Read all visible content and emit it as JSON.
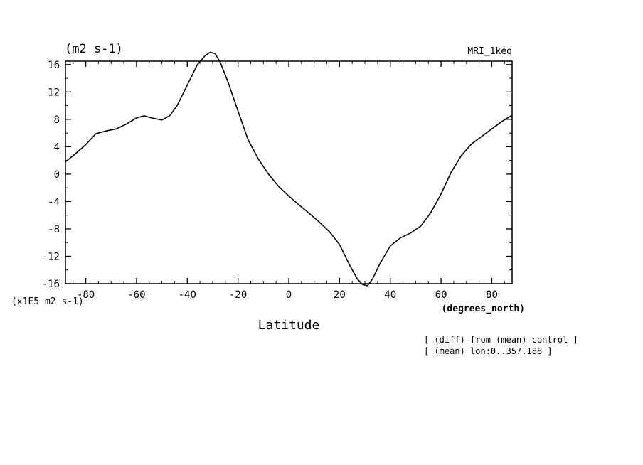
{
  "chart_data": {
    "type": "line",
    "title_units": "(m2 s-1)",
    "model_label": "MRI_1keq",
    "xlabel": "Latitude",
    "x_units": "(degrees_north)",
    "y_scale_label": "(x1E5 m2 s-1)",
    "annotations": [
      "[ (diff) from (mean) control ]",
      "[ (mean) lon:0..357.188 ]"
    ],
    "xlim": [
      -88,
      88
    ],
    "ylim": [
      -16,
      16.5
    ],
    "x_ticks": [
      -80,
      -60,
      -40,
      -20,
      0,
      20,
      40,
      60,
      80
    ],
    "x_tick_labels": [
      "-80",
      "-60",
      "-40",
      "-20",
      "0",
      "20",
      "40",
      "60",
      "80"
    ],
    "y_ticks": [
      16,
      12,
      8,
      4,
      0,
      -4,
      -8,
      -12,
      -16
    ],
    "y_tick_labels": [
      "16",
      "12",
      "8",
      "4",
      "0",
      "-4",
      "-8",
      "-12",
      "-16"
    ],
    "grid": false,
    "line_color": "#000000",
    "series": [
      {
        "x": [
          -88,
          -84,
          -80,
          -76,
          -72,
          -68,
          -64,
          -60,
          -57,
          -54,
          -50,
          -47,
          -44,
          -40,
          -36,
          -33,
          -31,
          -29,
          -27,
          -24,
          -20,
          -16,
          -12,
          -8,
          -4,
          0,
          4,
          8,
          12,
          16,
          20,
          24,
          27,
          29,
          31,
          33,
          36,
          40,
          44,
          48,
          52,
          56,
          60,
          64,
          68,
          72,
          76,
          80,
          84,
          88
        ],
        "y": [
          1.8,
          3.0,
          4.3,
          5.9,
          6.3,
          6.6,
          7.3,
          8.2,
          8.5,
          8.2,
          7.9,
          8.5,
          10.0,
          13.0,
          16.0,
          17.3,
          17.8,
          17.6,
          16.3,
          13.5,
          9.2,
          5.0,
          2.2,
          0.0,
          -1.8,
          -3.2,
          -4.5,
          -5.7,
          -7.0,
          -8.4,
          -10.3,
          -13.3,
          -15.3,
          -16.1,
          -16.3,
          -15.3,
          -13.0,
          -10.5,
          -9.3,
          -8.6,
          -7.6,
          -5.6,
          -2.9,
          0.3,
          2.7,
          4.4,
          5.5,
          6.6,
          7.7,
          8.6
        ]
      }
    ]
  }
}
